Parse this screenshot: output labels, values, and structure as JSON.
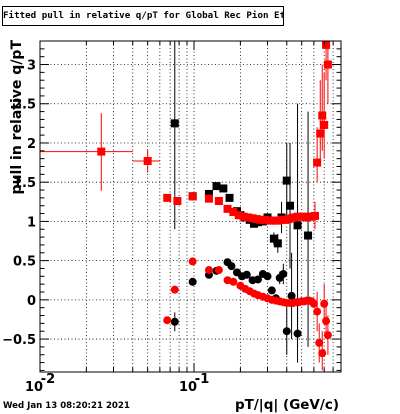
{
  "chart_data": {
    "type": "scatter",
    "title": "Fitted pull in relative q/pT for Global Rec Pion EtapT",
    "xlabel": "pT/|q| (GeV/c)",
    "ylabel": "pull in relative q/pT",
    "x_scale": "log",
    "xlim": [
      0.01,
      0.9
    ],
    "ylim": [
      -0.92,
      3.3
    ],
    "x_ticks": [
      {
        "value": 0.01,
        "base": "10",
        "exp": "-2"
      },
      {
        "value": 0.1,
        "base": "10",
        "exp": "-1"
      }
    ],
    "y_ticks": [
      {
        "value": -0.5,
        "label": "−0.5"
      },
      {
        "value": 0,
        "label": "0"
      },
      {
        "value": 0.5,
        "label": "0.5"
      },
      {
        "value": 1,
        "label": "1"
      },
      {
        "value": 1.5,
        "label": "1.5"
      },
      {
        "value": 2,
        "label": "2"
      },
      {
        "value": 2.5,
        "label": "2.5"
      },
      {
        "value": 3,
        "label": "3"
      }
    ],
    "grid": true,
    "series": [
      {
        "color": "#000000",
        "marker": "square",
        "points": [
          {
            "x": 0.075,
            "y": 2.25,
            "ylo": 0.9,
            "yhi": 3.3
          },
          {
            "x": 0.098,
            "y": 1.32,
            "ylo": 1.27,
            "yhi": 1.37
          },
          {
            "x": 0.125,
            "y": 1.35,
            "ylo": 1.32,
            "yhi": 1.38
          },
          {
            "x": 0.14,
            "y": 1.45,
            "ylo": 1.41,
            "yhi": 1.49
          },
          {
            "x": 0.155,
            "y": 1.42,
            "ylo": 1.38,
            "yhi": 1.46
          },
          {
            "x": 0.17,
            "y": 1.3,
            "ylo": 1.27,
            "yhi": 1.33
          },
          {
            "x": 0.19,
            "y": 1.13,
            "ylo": 1.1,
            "yhi": 1.16
          },
          {
            "x": 0.2,
            "y": 1.08,
            "ylo": 1.05,
            "yhi": 1.11
          },
          {
            "x": 0.215,
            "y": 1.05,
            "ylo": 1.02,
            "yhi": 1.08
          },
          {
            "x": 0.23,
            "y": 1.02,
            "ylo": 0.99,
            "yhi": 1.05
          },
          {
            "x": 0.245,
            "y": 0.97,
            "ylo": 0.93,
            "yhi": 1.01
          },
          {
            "x": 0.26,
            "y": 0.99,
            "ylo": 0.95,
            "yhi": 1.03
          },
          {
            "x": 0.28,
            "y": 1.0,
            "ylo": 0.96,
            "yhi": 1.04
          },
          {
            "x": 0.3,
            "y": 1.05,
            "ylo": 1.0,
            "yhi": 1.1
          },
          {
            "x": 0.33,
            "y": 0.78,
            "ylo": 0.7,
            "yhi": 0.86
          },
          {
            "x": 0.35,
            "y": 0.72,
            "ylo": 0.6,
            "yhi": 0.84
          },
          {
            "x": 0.37,
            "y": 1.05,
            "ylo": 0.85,
            "yhi": 1.25
          },
          {
            "x": 0.4,
            "y": 1.52,
            "ylo": 1.0,
            "yhi": 2.0
          },
          {
            "x": 0.42,
            "y": 1.2,
            "ylo": 0.4,
            "yhi": 2.0
          },
          {
            "x": 0.47,
            "y": 0.95,
            "ylo": -0.5,
            "yhi": 2.5
          },
          {
            "x": 0.55,
            "y": 0.82,
            "ylo": -0.6,
            "yhi": 2.4
          }
        ]
      },
      {
        "color": "#000000",
        "marker": "circle",
        "points": [
          {
            "x": 0.075,
            "y": -0.28,
            "ylo": -0.4,
            "yhi": -0.16
          },
          {
            "x": 0.098,
            "y": 0.23,
            "ylo": 0.2,
            "yhi": 0.26
          },
          {
            "x": 0.125,
            "y": 0.32,
            "ylo": 0.29,
            "yhi": 0.35
          },
          {
            "x": 0.14,
            "y": 0.37,
            "ylo": 0.34,
            "yhi": 0.4
          },
          {
            "x": 0.165,
            "y": 0.48,
            "ylo": 0.45,
            "yhi": 0.51
          },
          {
            "x": 0.175,
            "y": 0.43,
            "ylo": 0.4,
            "yhi": 0.46
          },
          {
            "x": 0.19,
            "y": 0.35,
            "ylo": 0.32,
            "yhi": 0.38
          },
          {
            "x": 0.205,
            "y": 0.3,
            "ylo": 0.27,
            "yhi": 0.33
          },
          {
            "x": 0.22,
            "y": 0.32,
            "ylo": 0.29,
            "yhi": 0.35
          },
          {
            "x": 0.24,
            "y": 0.25,
            "ylo": 0.22,
            "yhi": 0.28
          },
          {
            "x": 0.26,
            "y": 0.26,
            "ylo": 0.23,
            "yhi": 0.29
          },
          {
            "x": 0.28,
            "y": 0.33,
            "ylo": 0.3,
            "yhi": 0.36
          },
          {
            "x": 0.3,
            "y": 0.3,
            "ylo": 0.27,
            "yhi": 0.33
          },
          {
            "x": 0.32,
            "y": 0.12,
            "ylo": 0.08,
            "yhi": 0.16
          },
          {
            "x": 0.34,
            "y": 0.02,
            "ylo": -0.02,
            "yhi": 0.06
          },
          {
            "x": 0.36,
            "y": 0.28,
            "ylo": 0.2,
            "yhi": 0.36
          },
          {
            "x": 0.38,
            "y": 0.33,
            "ylo": 0.2,
            "yhi": 0.46
          },
          {
            "x": 0.4,
            "y": -0.4,
            "ylo": -0.7,
            "yhi": -0.1
          },
          {
            "x": 0.43,
            "y": 0.05,
            "ylo": -0.5,
            "yhi": 0.6
          },
          {
            "x": 0.47,
            "y": -0.43,
            "ylo": -0.8,
            "yhi": -0.06
          }
        ]
      },
      {
        "color": "#ff0000",
        "marker": "square",
        "points": [
          {
            "x": 0.025,
            "y": 1.89,
            "xlo": 0.01,
            "xhi": 0.04,
            "ylo": 1.39,
            "yhi": 2.38
          },
          {
            "x": 0.05,
            "y": 1.77,
            "xlo": 0.04,
            "xhi": 0.06,
            "ylo": 1.62,
            "yhi": 1.92
          },
          {
            "x": 0.067,
            "y": 1.3,
            "ylo": 1.26,
            "yhi": 1.34
          },
          {
            "x": 0.078,
            "y": 1.26,
            "ylo": 1.23,
            "yhi": 1.29
          },
          {
            "x": 0.098,
            "y": 1.32,
            "ylo": 1.29,
            "yhi": 1.35
          },
          {
            "x": 0.125,
            "y": 1.29,
            "ylo": 1.26,
            "yhi": 1.32
          },
          {
            "x": 0.145,
            "y": 1.26,
            "ylo": 1.23,
            "yhi": 1.29
          },
          {
            "x": 0.165,
            "y": 1.16,
            "ylo": 1.13,
            "yhi": 1.19
          },
          {
            "x": 0.18,
            "y": 1.12,
            "ylo": 1.09,
            "yhi": 1.15
          },
          {
            "x": 0.195,
            "y": 1.08,
            "ylo": 1.05,
            "yhi": 1.11
          },
          {
            "x": 0.21,
            "y": 1.06,
            "ylo": 1.03,
            "yhi": 1.09
          },
          {
            "x": 0.225,
            "y": 1.05,
            "ylo": 1.02,
            "yhi": 1.08
          },
          {
            "x": 0.24,
            "y": 1.04,
            "ylo": 1.01,
            "yhi": 1.07
          },
          {
            "x": 0.255,
            "y": 1.03,
            "ylo": 1.0,
            "yhi": 1.06
          },
          {
            "x": 0.27,
            "y": 1.02,
            "ylo": 0.99,
            "yhi": 1.05
          },
          {
            "x": 0.29,
            "y": 1.02,
            "ylo": 0.99,
            "yhi": 1.05
          },
          {
            "x": 0.31,
            "y": 1.01,
            "ylo": 0.98,
            "yhi": 1.04
          },
          {
            "x": 0.33,
            "y": 1.01,
            "ylo": 0.98,
            "yhi": 1.04
          },
          {
            "x": 0.35,
            "y": 1.01,
            "ylo": 0.98,
            "yhi": 1.04
          },
          {
            "x": 0.37,
            "y": 1.02,
            "ylo": 0.99,
            "yhi": 1.05
          },
          {
            "x": 0.39,
            "y": 1.02,
            "ylo": 0.99,
            "yhi": 1.05
          },
          {
            "x": 0.41,
            "y": 1.03,
            "ylo": 1.0,
            "yhi": 1.06
          },
          {
            "x": 0.43,
            "y": 1.04,
            "ylo": 1.01,
            "yhi": 1.07
          },
          {
            "x": 0.45,
            "y": 1.05,
            "ylo": 1.02,
            "yhi": 1.08
          },
          {
            "x": 0.47,
            "y": 1.06,
            "ylo": 1.03,
            "yhi": 1.09
          },
          {
            "x": 0.5,
            "y": 1.06,
            "ylo": 1.03,
            "yhi": 1.09
          },
          {
            "x": 0.52,
            "y": 1.06,
            "ylo": 1.03,
            "yhi": 1.09
          },
          {
            "x": 0.54,
            "y": 1.05,
            "ylo": 1.02,
            "yhi": 1.08
          },
          {
            "x": 0.56,
            "y": 1.06,
            "ylo": 1.03,
            "yhi": 1.09
          },
          {
            "x": 0.58,
            "y": 1.06,
            "ylo": 1.03,
            "yhi": 1.09
          },
          {
            "x": 0.61,
            "y": 1.07,
            "ylo": 0.9,
            "yhi": 1.25
          },
          {
            "x": 0.63,
            "y": 1.75,
            "ylo": 1.5,
            "yhi": 2.2
          },
          {
            "x": 0.66,
            "y": 2.12,
            "ylo": 1.7,
            "yhi": 2.8
          },
          {
            "x": 0.68,
            "y": 2.35,
            "ylo": 1.9,
            "yhi": 3.0
          },
          {
            "x": 0.7,
            "y": 2.23,
            "ylo": 1.8,
            "yhi": 2.9
          },
          {
            "x": 0.72,
            "y": 3.25,
            "ylo": 2.8,
            "yhi": 3.3
          },
          {
            "x": 0.74,
            "y": 3.0,
            "ylo": 2.5,
            "yhi": 3.3
          }
        ]
      },
      {
        "color": "#ff0000",
        "marker": "circle",
        "points": [
          {
            "x": 0.067,
            "y": -0.26,
            "ylo": -0.3,
            "yhi": -0.22
          },
          {
            "x": 0.075,
            "y": 0.13,
            "ylo": 0.1,
            "yhi": 0.16
          },
          {
            "x": 0.098,
            "y": 0.49,
            "ylo": 0.46,
            "yhi": 0.52
          },
          {
            "x": 0.125,
            "y": 0.38,
            "ylo": 0.35,
            "yhi": 0.41
          },
          {
            "x": 0.145,
            "y": 0.38,
            "ylo": 0.35,
            "yhi": 0.41
          },
          {
            "x": 0.165,
            "y": 0.25,
            "ylo": 0.22,
            "yhi": 0.28
          },
          {
            "x": 0.18,
            "y": 0.23,
            "ylo": 0.2,
            "yhi": 0.26
          },
          {
            "x": 0.2,
            "y": 0.18,
            "ylo": 0.15,
            "yhi": 0.21
          },
          {
            "x": 0.215,
            "y": 0.14,
            "ylo": 0.11,
            "yhi": 0.17
          },
          {
            "x": 0.23,
            "y": 0.11,
            "ylo": 0.08,
            "yhi": 0.14
          },
          {
            "x": 0.245,
            "y": 0.08,
            "ylo": 0.05,
            "yhi": 0.11
          },
          {
            "x": 0.26,
            "y": 0.06,
            "ylo": 0.03,
            "yhi": 0.09
          },
          {
            "x": 0.28,
            "y": 0.04,
            "ylo": 0.01,
            "yhi": 0.07
          },
          {
            "x": 0.3,
            "y": 0.02,
            "ylo": -0.01,
            "yhi": 0.05
          },
          {
            "x": 0.32,
            "y": 0.0,
            "ylo": -0.03,
            "yhi": 0.03
          },
          {
            "x": 0.34,
            "y": -0.01,
            "ylo": -0.04,
            "yhi": 0.02
          },
          {
            "x": 0.36,
            "y": -0.02,
            "ylo": -0.05,
            "yhi": 0.01
          },
          {
            "x": 0.38,
            "y": -0.03,
            "ylo": -0.06,
            "yhi": 0.0
          },
          {
            "x": 0.4,
            "y": -0.04,
            "ylo": -0.07,
            "yhi": -0.01
          },
          {
            "x": 0.42,
            "y": -0.04,
            "ylo": -0.07,
            "yhi": -0.01
          },
          {
            "x": 0.44,
            "y": -0.04,
            "ylo": -0.07,
            "yhi": -0.01
          },
          {
            "x": 0.46,
            "y": -0.03,
            "ylo": -0.06,
            "yhi": 0.0
          },
          {
            "x": 0.48,
            "y": -0.03,
            "ylo": -0.06,
            "yhi": 0.0
          },
          {
            "x": 0.5,
            "y": -0.02,
            "ylo": -0.05,
            "yhi": 0.01
          },
          {
            "x": 0.52,
            "y": -0.02,
            "ylo": -0.05,
            "yhi": 0.01
          },
          {
            "x": 0.54,
            "y": -0.01,
            "ylo": -0.04,
            "yhi": 0.02
          },
          {
            "x": 0.56,
            "y": -0.01,
            "ylo": -0.04,
            "yhi": 0.02
          },
          {
            "x": 0.58,
            "y": -0.02,
            "ylo": -0.05,
            "yhi": 0.01
          },
          {
            "x": 0.6,
            "y": -0.05,
            "ylo": -0.1,
            "yhi": 0.0
          },
          {
            "x": 0.63,
            "y": -0.15,
            "ylo": -0.4,
            "yhi": 0.1
          },
          {
            "x": 0.65,
            "y": -0.55,
            "ylo": -0.8,
            "yhi": -0.3
          },
          {
            "x": 0.68,
            "y": -0.68,
            "ylo": -0.9,
            "yhi": -0.4
          },
          {
            "x": 0.7,
            "y": -0.05,
            "ylo": -0.3,
            "yhi": 0.2
          },
          {
            "x": 0.72,
            "y": -0.27,
            "ylo": -0.5,
            "yhi": 0.0
          },
          {
            "x": 0.74,
            "y": -0.45,
            "ylo": -0.7,
            "yhi": -0.2
          }
        ]
      }
    ]
  },
  "footer": {
    "timestamp": "Wed Jan 13 08:20:21 2021"
  }
}
